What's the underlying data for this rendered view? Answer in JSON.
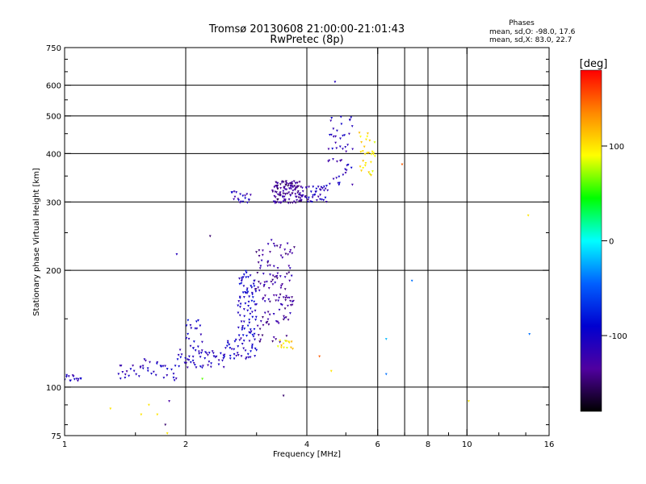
{
  "chart_data": {
    "type": "scatter",
    "title": "Tromsø 20130608 21:00:00-21:01:43",
    "subtitle": "RwPretec (8p)",
    "xlabel": "Frequency [MHz]",
    "ylabel": "Stationary phase Virtual Height [km]",
    "x_scale": "log",
    "y_scale": "log",
    "xlim": [
      1,
      16
    ],
    "ylim": [
      75,
      750
    ],
    "x_ticks": [
      1,
      2,
      4,
      6,
      8,
      10,
      16
    ],
    "x_tick_labels": [
      "1",
      "2",
      "4",
      "6",
      "8",
      "10",
      "16"
    ],
    "x_grid": [
      2,
      4,
      6,
      7,
      8,
      10
    ],
    "y_ticks": [
      75,
      100,
      200,
      300,
      400,
      500,
      600,
      750
    ],
    "y_tick_labels": [
      "75",
      "100",
      "200",
      "300",
      "400",
      "500",
      "600",
      "750"
    ],
    "y_grid": [
      100,
      200,
      300,
      400,
      500,
      600
    ],
    "grid": true,
    "phase_info": {
      "heading": "Phases",
      "line_o": "mean, sd,O: -98.0, 17.6",
      "line_x": "mean, sd,X: 83.0, 22.7"
    },
    "colorbar": {
      "label": "[deg]",
      "range": [
        -180,
        180
      ],
      "ticks": [
        100,
        0,
        -100
      ],
      "tick_labels": [
        "100",
        "0",
        "-100"
      ],
      "colors": [
        "#ff0000",
        "#ff8800",
        "#ffff00",
        "#00ff00",
        "#00ffff",
        "#0060ff",
        "#0000d0",
        "#5000a0",
        "#000000"
      ]
    },
    "point_cloud": {
      "note_units": "frequency MHz, height km, phase deg",
      "traces": [
        {
          "f": [
            1.0,
            1.1
          ],
          "h": [
            103,
            108
          ],
          "phase": -110,
          "n": 14
        },
        {
          "f": [
            1.35,
            1.9
          ],
          "h": [
            104,
            118
          ],
          "phase": -110,
          "n": 40
        },
        {
          "f": [
            1.9,
            2.5
          ],
          "h": [
            112,
            125
          ],
          "phase": -108,
          "n": 50
        },
        {
          "f": [
            2.5,
            3.0
          ],
          "h": [
            118,
            135
          ],
          "phase": -105,
          "n": 40
        },
        {
          "f": [
            2.0,
            2.2
          ],
          "h": [
            120,
            150
          ],
          "phase": -100,
          "n": 20
        },
        {
          "f": [
            2.7,
            3.0
          ],
          "h": [
            135,
            200
          ],
          "phase": -100,
          "n": 80
        },
        {
          "f": [
            3.0,
            3.7
          ],
          "h": [
            130,
            240
          ],
          "phase": -130,
          "n": 130
        },
        {
          "f": [
            2.6,
            2.9
          ],
          "h": [
            298,
            320
          ],
          "phase": -110,
          "n": 20
        },
        {
          "f": [
            3.3,
            3.9
          ],
          "h": [
            298,
            340
          ],
          "phase": -135,
          "n": 120
        },
        {
          "f": [
            3.9,
            4.5
          ],
          "h": [
            300,
            330
          ],
          "phase": -110,
          "n": 40
        },
        {
          "f": [
            4.5,
            5.2
          ],
          "h": [
            330,
            500
          ],
          "phase": -110,
          "n": 50
        },
        {
          "f": [
            5.4,
            5.9
          ],
          "h": [
            350,
            460
          ],
          "phase": 100,
          "n": 30
        },
        {
          "f": [
            3.4,
            3.7
          ],
          "h": [
            125,
            132
          ],
          "phase": 100,
          "n": 14
        }
      ],
      "scattered": [
        {
          "f": 1.3,
          "h": 88,
          "phase": 100
        },
        {
          "f": 1.55,
          "h": 85,
          "phase": 100
        },
        {
          "f": 1.62,
          "h": 90,
          "phase": 100
        },
        {
          "f": 1.7,
          "h": 85,
          "phase": 100
        },
        {
          "f": 1.78,
          "h": 80,
          "phase": -150
        },
        {
          "f": 1.8,
          "h": 76,
          "phase": 100
        },
        {
          "f": 1.82,
          "h": 92,
          "phase": -130
        },
        {
          "f": 1.9,
          "h": 220,
          "phase": -110
        },
        {
          "f": 2.3,
          "h": 245,
          "phase": -150
        },
        {
          "f": 2.2,
          "h": 105,
          "phase": 60
        },
        {
          "f": 3.5,
          "h": 95,
          "phase": -150
        },
        {
          "f": 4.6,
          "h": 110,
          "phase": 100
        },
        {
          "f": 4.7,
          "h": 612,
          "phase": -110
        },
        {
          "f": 6.3,
          "h": 133,
          "phase": -20
        },
        {
          "f": 6.3,
          "h": 108,
          "phase": -40
        },
        {
          "f": 6.9,
          "h": 375,
          "phase": 150
        },
        {
          "f": 7.3,
          "h": 188,
          "phase": -40
        },
        {
          "f": 10.1,
          "h": 92,
          "phase": 100
        },
        {
          "f": 14.2,
          "h": 277,
          "phase": 100
        },
        {
          "f": 14.3,
          "h": 137,
          "phase": -40
        },
        {
          "f": 4.3,
          "h": 120,
          "phase": 150
        }
      ]
    }
  }
}
